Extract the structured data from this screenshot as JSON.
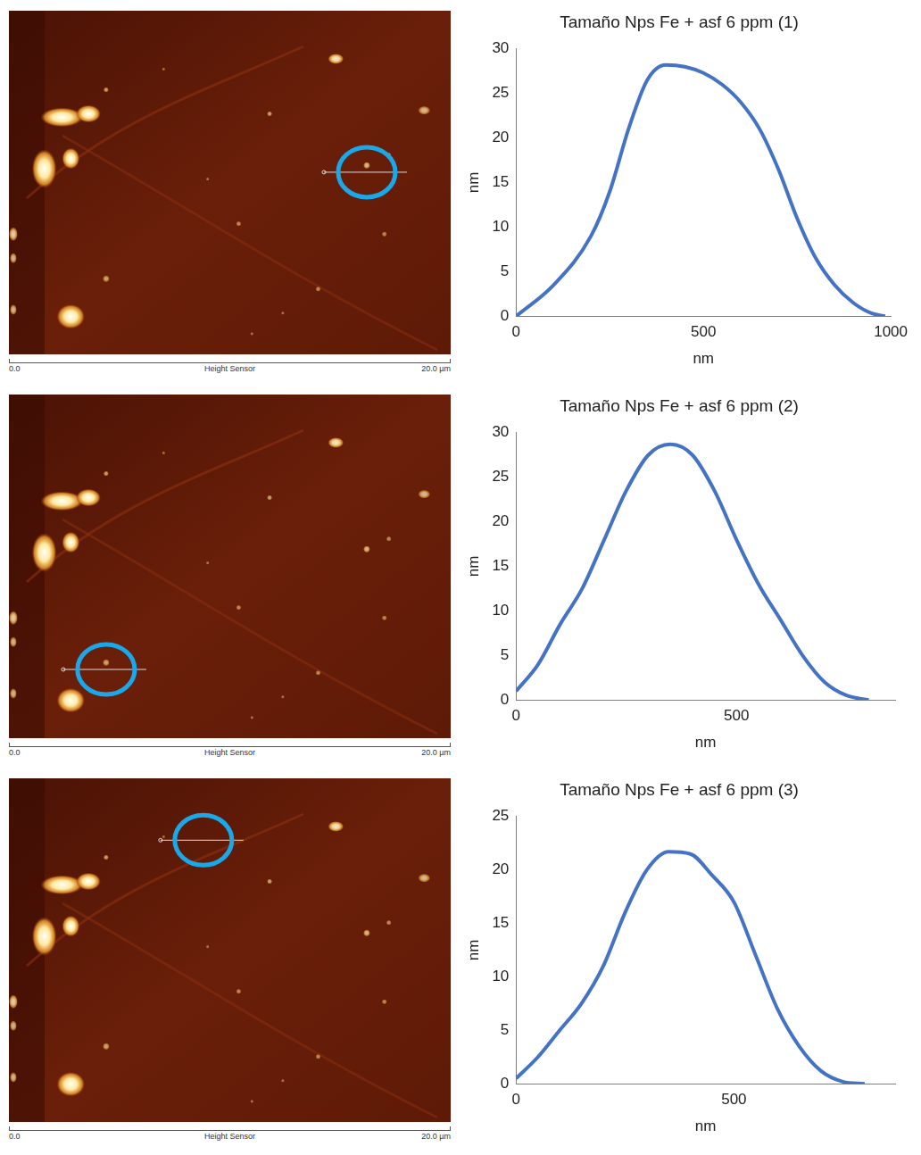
{
  "chart_data": [
    {
      "type": "line",
      "title": "Tamaño Nps Fe + asf 6 ppm (1)",
      "x_label": "nm",
      "y_label": "nm",
      "x": [
        0,
        100,
        200,
        250,
        300,
        350,
        400,
        450,
        500,
        550,
        600,
        650,
        700,
        750,
        800,
        850,
        900,
        950,
        985
      ],
      "series": [
        {
          "name": "Tamaño Nps Fe + asf 6 ppm (1)",
          "color": "#4472c4",
          "values": [
            0,
            3.5,
            9,
            14,
            21,
            26.5,
            28.2,
            28,
            27.3,
            26,
            24,
            21,
            16.5,
            11,
            6.5,
            3.5,
            1.5,
            0.3,
            0
          ]
        }
      ],
      "xlim": [
        0,
        1000
      ],
      "xticks": [
        0,
        500,
        1000
      ],
      "ylim": [
        0,
        30
      ],
      "yticks": [
        0,
        5,
        10,
        15,
        20,
        25,
        30
      ],
      "grid": false
    },
    {
      "type": "line",
      "title": "Tamaño Nps Fe + asf 6 ppm (2)",
      "x_label": "nm",
      "y_label": "nm",
      "x": [
        0,
        50,
        100,
        150,
        200,
        250,
        300,
        350,
        400,
        450,
        500,
        550,
        600,
        650,
        700,
        750,
        800
      ],
      "series": [
        {
          "name": "Tamaño Nps Fe + asf 6 ppm (2)",
          "color": "#4472c4",
          "values": [
            1,
            4,
            8.5,
            12.5,
            18,
            23.5,
            27.5,
            28.7,
            27.5,
            23.5,
            18,
            13,
            9,
            5,
            2,
            0.5,
            0
          ]
        }
      ],
      "xlim": [
        0,
        860
      ],
      "xticks": [
        0,
        500
      ],
      "ylim": [
        0,
        30
      ],
      "yticks": [
        0,
        5,
        10,
        15,
        20,
        25,
        30
      ],
      "grid": false
    },
    {
      "type": "line",
      "title": "Tamaño Nps Fe + asf 6 ppm (3)",
      "x_label": "nm",
      "y_label": "nm",
      "x": [
        0,
        50,
        100,
        150,
        200,
        250,
        300,
        350,
        400,
        450,
        500,
        550,
        600,
        650,
        700,
        750,
        800
      ],
      "series": [
        {
          "name": "Tamaño Nps Fe + asf 6 ppm (3)",
          "color": "#4472c4",
          "values": [
            0.5,
            2.5,
            5,
            7.5,
            11,
            16,
            20,
            21.7,
            21.5,
            19.5,
            17,
            12,
            7,
            3.5,
            1.2,
            0.2,
            0
          ]
        }
      ],
      "xlim": [
        0,
        870
      ],
      "xticks": [
        0,
        500
      ],
      "ylim": [
        0,
        25
      ],
      "yticks": [
        0,
        5,
        10,
        15,
        20,
        25
      ],
      "grid": false
    }
  ],
  "images": [
    {
      "scale_start": "0.0",
      "scale_label": "Height Sensor",
      "scale_end": "20.0 µm"
    },
    {
      "scale_start": "0.0",
      "scale_label": "Height Sensor",
      "scale_end": "20.0 µm"
    },
    {
      "scale_start": "0.0",
      "scale_label": "Height Sensor",
      "scale_end": "20.0 µm"
    }
  ]
}
